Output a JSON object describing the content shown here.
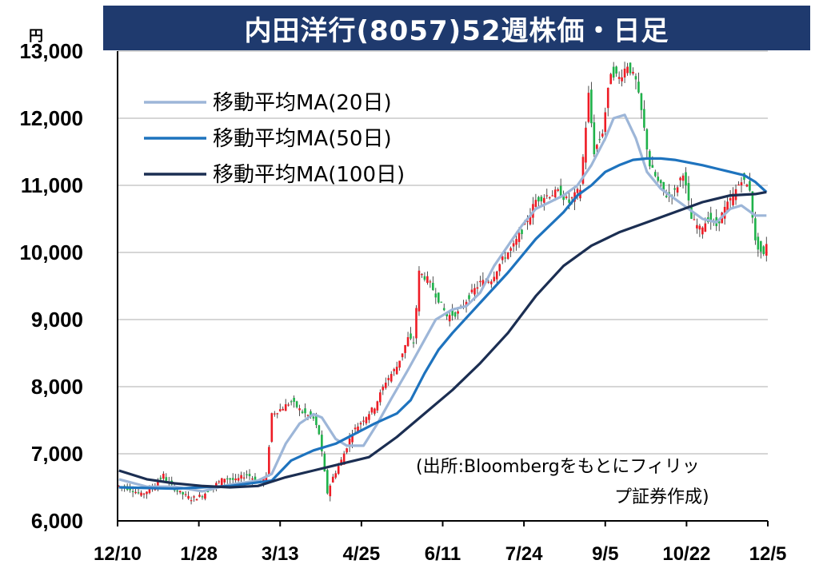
{
  "header": {
    "title": "内田洋行(8057)52週株価・日足",
    "unit": "円"
  },
  "source_note": {
    "line1": "(出所:Bloombergをもとにフィリッ",
    "line2": "プ証券作成)"
  },
  "colors": {
    "title_bg": "#1f3a6e",
    "up": "#ee1c25",
    "down": "#1fb24a",
    "ma20": "#9db6d8",
    "ma50": "#1e73be",
    "ma100": "#1b2e52",
    "grid": "#bdbdbd"
  },
  "chart_data": {
    "type": "candlestick",
    "title": "内田洋行(8057)52週株価・日足",
    "ylabel": "円",
    "ylim": [
      6000,
      13000
    ],
    "yticks": [
      6000,
      7000,
      8000,
      9000,
      10000,
      11000,
      12000,
      13000
    ],
    "ytick_labels": [
      "6,000",
      "7,000",
      "8,000",
      "9,000",
      "10,000",
      "11,000",
      "12,000",
      "13,000"
    ],
    "xticks": [
      "12/10",
      "1/28",
      "3/13",
      "4/25",
      "6/11",
      "7/24",
      "9/5",
      "10/22",
      "12/5"
    ],
    "grid": true,
    "legend_position": "top-left",
    "price_path": [
      [
        0,
        6520
      ],
      [
        4,
        6480
      ],
      [
        8,
        6390
      ],
      [
        12,
        6500
      ],
      [
        16,
        6680
      ],
      [
        18,
        6550
      ],
      [
        22,
        6420
      ],
      [
        26,
        6330
      ],
      [
        30,
        6380
      ],
      [
        34,
        6520
      ],
      [
        38,
        6640
      ],
      [
        42,
        6600
      ],
      [
        46,
        6700
      ],
      [
        50,
        6580
      ],
      [
        53,
        6650
      ],
      [
        55,
        7600
      ],
      [
        58,
        7660
      ],
      [
        62,
        7780
      ],
      [
        66,
        7620
      ],
      [
        70,
        7520
      ],
      [
        72,
        7300
      ],
      [
        75,
        6420
      ],
      [
        77,
        6650
      ],
      [
        80,
        6900
      ],
      [
        84,
        7320
      ],
      [
        88,
        7520
      ],
      [
        92,
        7700
      ],
      [
        96,
        8080
      ],
      [
        100,
        8300
      ],
      [
        104,
        8720
      ],
      [
        106,
        8660
      ],
      [
        108,
        9700
      ],
      [
        111,
        9600
      ],
      [
        115,
        9300
      ],
      [
        118,
        9050
      ],
      [
        122,
        9100
      ],
      [
        126,
        9350
      ],
      [
        130,
        9550
      ],
      [
        134,
        9600
      ],
      [
        138,
        9900
      ],
      [
        142,
        10100
      ],
      [
        146,
        10400
      ],
      [
        150,
        10780
      ],
      [
        154,
        10850
      ],
      [
        158,
        10900
      ],
      [
        162,
        10750
      ],
      [
        166,
        10950
      ],
      [
        169,
        12350
      ],
      [
        171,
        11500
      ],
      [
        174,
        11800
      ],
      [
        177,
        12700
      ],
      [
        180,
        12600
      ],
      [
        183,
        12800
      ],
      [
        186,
        12550
      ],
      [
        188,
        12100
      ],
      [
        191,
        11300
      ],
      [
        194,
        11050
      ],
      [
        197,
        10850
      ],
      [
        200,
        10900
      ],
      [
        203,
        11200
      ],
      [
        206,
        10500
      ],
      [
        209,
        10350
      ],
      [
        212,
        10500
      ],
      [
        215,
        10400
      ],
      [
        218,
        10650
      ],
      [
        221,
        10850
      ],
      [
        224,
        11100
      ],
      [
        227,
        10950
      ],
      [
        229,
        10150
      ],
      [
        232,
        9950
      ],
      [
        233,
        10150
      ]
    ],
    "series": [
      {
        "name": "移動平均MA(20日)",
        "values": [
          [
            0,
            6620
          ],
          [
            10,
            6510
          ],
          [
            20,
            6510
          ],
          [
            30,
            6440
          ],
          [
            40,
            6540
          ],
          [
            50,
            6600
          ],
          [
            55,
            6700
          ],
          [
            60,
            7150
          ],
          [
            65,
            7450
          ],
          [
            70,
            7590
          ],
          [
            73,
            7540
          ],
          [
            78,
            7220
          ],
          [
            82,
            7120
          ],
          [
            88,
            7120
          ],
          [
            93,
            7450
          ],
          [
            98,
            7820
          ],
          [
            104,
            8250
          ],
          [
            110,
            8700
          ],
          [
            114,
            9000
          ],
          [
            120,
            9150
          ],
          [
            125,
            9200
          ],
          [
            130,
            9400
          ],
          [
            135,
            9800
          ],
          [
            140,
            10100
          ],
          [
            145,
            10400
          ],
          [
            150,
            10650
          ],
          [
            155,
            10750
          ],
          [
            160,
            10850
          ],
          [
            165,
            11000
          ],
          [
            170,
            11300
          ],
          [
            175,
            11700
          ],
          [
            178,
            12000
          ],
          [
            182,
            12050
          ],
          [
            186,
            11700
          ],
          [
            190,
            11200
          ],
          [
            195,
            10950
          ],
          [
            200,
            10800
          ],
          [
            205,
            10650
          ],
          [
            210,
            10500
          ],
          [
            215,
            10450
          ],
          [
            220,
            10650
          ],
          [
            224,
            10700
          ],
          [
            229,
            10550
          ],
          [
            233,
            10550
          ]
        ]
      },
      {
        "name": "移動平均MA(50日)",
        "values": [
          [
            0,
            6500
          ],
          [
            20,
            6480
          ],
          [
            40,
            6520
          ],
          [
            55,
            6600
          ],
          [
            62,
            6900
          ],
          [
            70,
            7050
          ],
          [
            78,
            7150
          ],
          [
            85,
            7300
          ],
          [
            92,
            7450
          ],
          [
            100,
            7600
          ],
          [
            105,
            7800
          ],
          [
            110,
            8200
          ],
          [
            115,
            8550
          ],
          [
            120,
            8800
          ],
          [
            130,
            9250
          ],
          [
            140,
            9700
          ],
          [
            150,
            10200
          ],
          [
            160,
            10600
          ],
          [
            165,
            10850
          ],
          [
            170,
            11000
          ],
          [
            175,
            11200
          ],
          [
            180,
            11300
          ],
          [
            185,
            11380
          ],
          [
            190,
            11400
          ],
          [
            195,
            11400
          ],
          [
            200,
            11380
          ],
          [
            205,
            11340
          ],
          [
            210,
            11300
          ],
          [
            215,
            11250
          ],
          [
            220,
            11200
          ],
          [
            225,
            11150
          ],
          [
            229,
            11050
          ],
          [
            233,
            10900
          ]
        ]
      },
      {
        "name": "移動平均MA(100日)",
        "values": [
          [
            0,
            6750
          ],
          [
            10,
            6620
          ],
          [
            20,
            6560
          ],
          [
            30,
            6520
          ],
          [
            40,
            6500
          ],
          [
            50,
            6520
          ],
          [
            60,
            6650
          ],
          [
            70,
            6750
          ],
          [
            80,
            6850
          ],
          [
            90,
            6950
          ],
          [
            100,
            7250
          ],
          [
            110,
            7600
          ],
          [
            120,
            7950
          ],
          [
            130,
            8350
          ],
          [
            140,
            8800
          ],
          [
            150,
            9350
          ],
          [
            160,
            9800
          ],
          [
            170,
            10100
          ],
          [
            180,
            10300
          ],
          [
            190,
            10450
          ],
          [
            200,
            10600
          ],
          [
            210,
            10750
          ],
          [
            220,
            10850
          ],
          [
            229,
            10870
          ],
          [
            233,
            10900
          ]
        ]
      }
    ]
  }
}
